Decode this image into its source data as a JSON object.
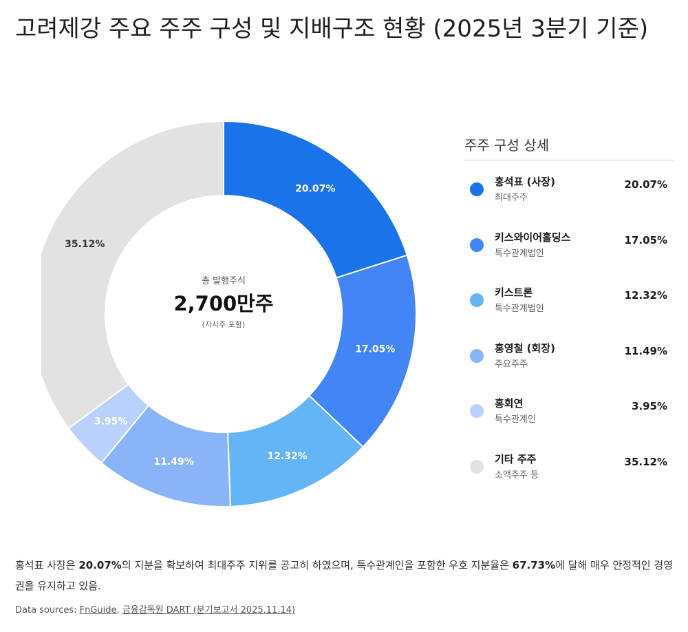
{
  "title": "고려제강 주요 주주 구성 및 지배구조 현황 (2025년 3분기 기준)",
  "center": {
    "label": "총 발행주식",
    "value": "2,700만주",
    "note": "(자사주 포함)"
  },
  "legend_title": "주주 구성 상세",
  "chart_data": {
    "type": "pie",
    "title": "고려제강 주요 주주 구성 및 지배구조 현황 (2025년 3분기 기준)",
    "categories": [
      "홍석표 (사장)",
      "키스와이어홀딩스",
      "키스트론",
      "홍영철 (회장)",
      "홍회연",
      "기타 주주"
    ],
    "values": [
      20.07,
      17.05,
      12.32,
      11.49,
      3.95,
      35.12
    ],
    "value_labels": [
      "20.07%",
      "17.05%",
      "12.32%",
      "11.49%",
      "3.95%",
      "35.12%"
    ],
    "subtitles": [
      "최대주주",
      "특수관계법인",
      "특수관계법인",
      "주요주주",
      "특수관계인",
      "소액주주 등"
    ],
    "colors": [
      "#1a73e8",
      "#4285f4",
      "#64b5f6",
      "#8ab4f8",
      "#b8d2fb",
      "#e2e2e2"
    ],
    "label_colors": [
      "#ffffff",
      "#ffffff",
      "#ffffff",
      "#ffffff",
      "#ffffff",
      "#333333"
    ],
    "legend": "right"
  },
  "summary": {
    "p1": "홍석표 사장은 ",
    "b1": "20.07%",
    "p2": "의 지분을 확보하여 최대주주 지위를 공고히 하였으며, 특수관계인을 포함한 우호 지분율은 ",
    "b2": "67.73%",
    "p3": "에 달해 매우 안정적인 경영권을 유지하고 있음."
  },
  "sources": {
    "prefix": "Data sources: ",
    "link1": "FnGuide",
    "sep": ", ",
    "link2": "금융감독원 DART (분기보고서 2025.11.14)"
  }
}
